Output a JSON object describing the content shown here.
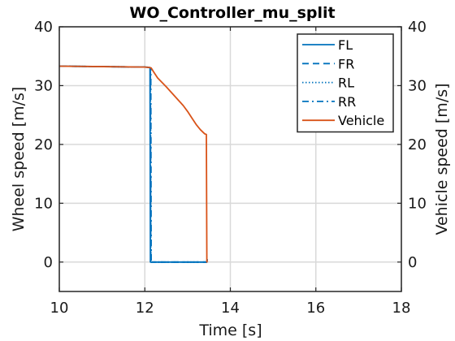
{
  "chart_data": {
    "type": "line",
    "title": "WO_Controller_mu_split",
    "xlabel": "Time [s]",
    "ylabel_left": "Wheel speed [m/s]",
    "ylabel_right": "Vehicle speed [m/s]",
    "xlim": [
      10,
      18
    ],
    "ylim": [
      -5,
      40
    ],
    "xticks": [
      "10",
      "12",
      "14",
      "16",
      "18"
    ],
    "yticks": [
      "0",
      "10",
      "20",
      "30",
      "40"
    ],
    "yticks_right": [
      "0",
      "10",
      "20",
      "30",
      "40"
    ],
    "grid": true,
    "legend_position": "top-right",
    "series": [
      {
        "name": "FL",
        "color": "#0072BD",
        "style": "solid",
        "x": [
          10,
          12.0,
          12.1,
          12.12,
          12.13,
          13.45,
          13.46
        ],
        "y": [
          33.3,
          33.15,
          33.1,
          33.0,
          0,
          0,
          0.5
        ]
      },
      {
        "name": "FR",
        "color": "#0072BD",
        "style": "dashed",
        "x": [
          10,
          12.0,
          12.1,
          12.13,
          12.14,
          13.45,
          13.46
        ],
        "y": [
          33.3,
          33.15,
          33.1,
          33.0,
          0,
          0,
          0.5
        ]
      },
      {
        "name": "RL",
        "color": "#0072BD",
        "style": "dotted",
        "x": [
          10,
          12.0,
          12.1,
          12.13,
          12.14,
          13.45,
          13.46
        ],
        "y": [
          33.3,
          33.15,
          33.1,
          33.0,
          0,
          0,
          0.5
        ]
      },
      {
        "name": "RR",
        "color": "#0072BD",
        "style": "dashdot",
        "x": [
          10,
          12.0,
          12.1,
          12.14,
          12.15,
          13.45,
          13.46
        ],
        "y": [
          33.3,
          33.15,
          33.1,
          33.0,
          0,
          0,
          0.5
        ]
      },
      {
        "name": "Vehicle",
        "color": "#D95319",
        "style": "solid",
        "x": [
          10,
          12.0,
          12.1,
          12.15,
          12.2,
          12.3,
          12.5,
          12.7,
          12.9,
          13.0,
          13.1,
          13.2,
          13.3,
          13.4,
          13.44,
          13.45,
          13.46
        ],
        "y": [
          33.3,
          33.15,
          33.1,
          33.0,
          32.4,
          31.3,
          29.8,
          28.2,
          26.6,
          25.6,
          24.5,
          23.4,
          22.5,
          21.8,
          21.7,
          0,
          0.3
        ]
      }
    ]
  }
}
